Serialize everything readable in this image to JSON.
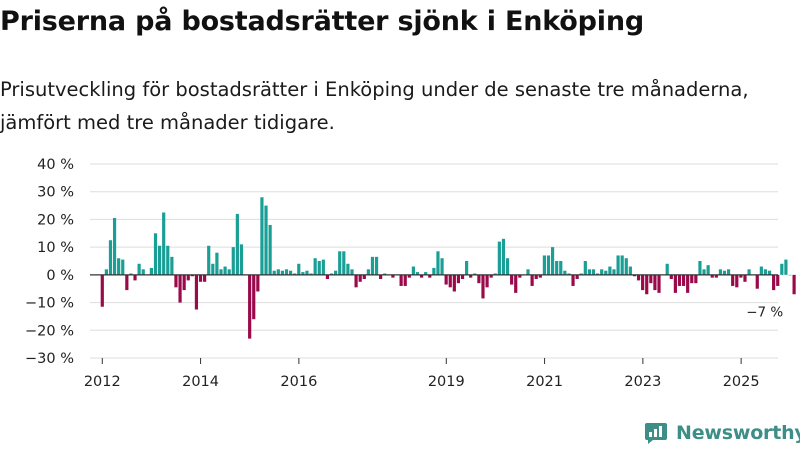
{
  "title": "Priserna på bostadsrätter sjönk i Enköping",
  "subtitle": "Prisutveckling för bostadsrätter i Enköping under de senaste tre månaderna, jämfört med tre månader tidigare.",
  "logo_text": "Newsworthy",
  "colors": {
    "positive": "#1a9f96",
    "negative": "#9a0a4b",
    "grid": "#dddddd",
    "zero": "#333333",
    "logo": "#3d8e86"
  },
  "chart_data": {
    "type": "bar",
    "ylim": [
      -30,
      40
    ],
    "y_ticks": [
      -30,
      -20,
      -10,
      0,
      10,
      20,
      30,
      40
    ],
    "y_tick_labels": [
      "−30 %",
      "−20 %",
      "−10 %",
      "0 %",
      "10 %",
      "20 %",
      "30 %",
      "40 %"
    ],
    "x_range": [
      2011.75,
      2025.75
    ],
    "x_ticks": [
      2012,
      2014,
      2016,
      2019,
      2021,
      2023,
      2025
    ],
    "x_tick_labels": [
      "2012",
      "2014",
      "2016",
      "2019",
      "2021",
      "2023",
      "2025"
    ],
    "annotation": {
      "text": "−7 %",
      "x": 2025.5,
      "y": -7
    },
    "series": [
      {
        "name": "Prisutveckling",
        "start": 2012.0,
        "step": 0.0833,
        "values": [
          -11.5,
          2,
          12.5,
          20.5,
          6,
          5.5,
          -5.5,
          0.5,
          -2,
          4,
          2,
          0,
          2.5,
          15,
          10.5,
          22.5,
          10.5,
          6.5,
          -4.5,
          -10,
          -5.5,
          -2,
          -0.5,
          -12.5,
          -2.5,
          -2.5,
          10.5,
          4,
          8,
          2,
          3,
          2,
          10,
          22,
          11,
          0,
          -23,
          -16,
          -6,
          28,
          25,
          18,
          1.5,
          2,
          1.5,
          2,
          1.5,
          0.5,
          4,
          1,
          1.5,
          0.5,
          6,
          5,
          5.5,
          -1.5,
          0.5,
          1.5,
          8.5,
          8.5,
          4,
          2,
          -4.5,
          -2.5,
          -1.5,
          2,
          6.5,
          6.5,
          -1.5,
          0.5,
          0,
          -1,
          0,
          -4,
          -4,
          -1,
          3,
          1,
          -1,
          1,
          -1,
          2.5,
          8.5,
          6,
          -3.5,
          -4.5,
          -6,
          -3,
          -1.5,
          5,
          -1,
          0.5,
          -3,
          -8.5,
          -4.5,
          -1,
          0.5,
          12,
          13,
          6,
          -3.5,
          -6.5,
          -1,
          0,
          2,
          -4,
          -1.5,
          -1,
          7,
          7,
          10,
          5,
          5,
          1.5,
          0.5,
          -4,
          -1.5,
          0.5,
          5,
          2,
          2,
          0.5,
          2,
          1.5,
          3,
          2,
          7,
          7,
          6,
          3,
          -0.5,
          -2,
          -5.5,
          -7,
          -3,
          -5.5,
          -6.5,
          0,
          4,
          -1.5,
          -6.5,
          -4,
          -4,
          -6.5,
          -3,
          -3,
          5,
          2,
          3.5,
          -1,
          -1,
          2,
          1.5,
          2,
          -4,
          -4.5,
          -1,
          -2.5,
          2,
          0,
          -5,
          3,
          2,
          1.5,
          -5.5,
          -4,
          4,
          5.5,
          0,
          -7
        ]
      }
    ]
  }
}
